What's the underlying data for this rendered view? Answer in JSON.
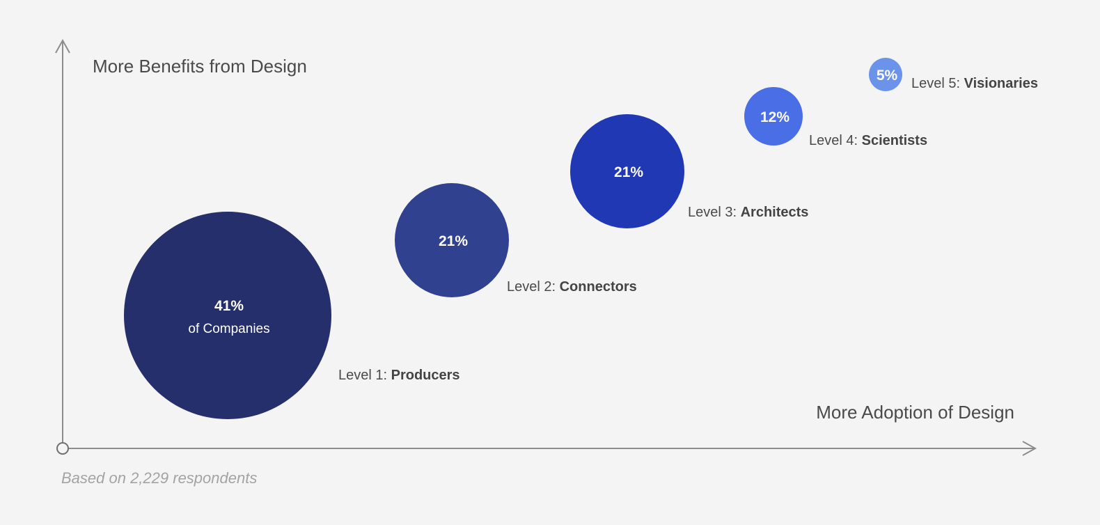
{
  "chart_data": {
    "type": "scatter",
    "ylabel": "More Benefits from Design",
    "xlabel": "More Adoption of Design",
    "footnote": "Based on 2,229 respondents",
    "grid": false,
    "legend": "none",
    "points": [
      {
        "value": 41,
        "label": "41%",
        "sublabel": "of Companies",
        "level_prefix": "Level 1: ",
        "level_name": "Producers",
        "color": "#252f6b"
      },
      {
        "value": 21,
        "label": "21%",
        "sublabel": "",
        "level_prefix": "Level 2: ",
        "level_name": "Connectors",
        "color": "#30418f"
      },
      {
        "value": 21,
        "label": "21%",
        "sublabel": "",
        "level_prefix": "Level 3: ",
        "level_name": "Architects",
        "color": "#2138b5"
      },
      {
        "value": 12,
        "label": "12%",
        "sublabel": "",
        "level_prefix": "Level 4: ",
        "level_name": "Scientists",
        "color": "#4a6ee6"
      },
      {
        "value": 5,
        "label": "5%",
        "sublabel": "",
        "level_prefix": "Level 5: ",
        "level_name": "Visionaries",
        "color": "#6b93ea"
      }
    ]
  }
}
